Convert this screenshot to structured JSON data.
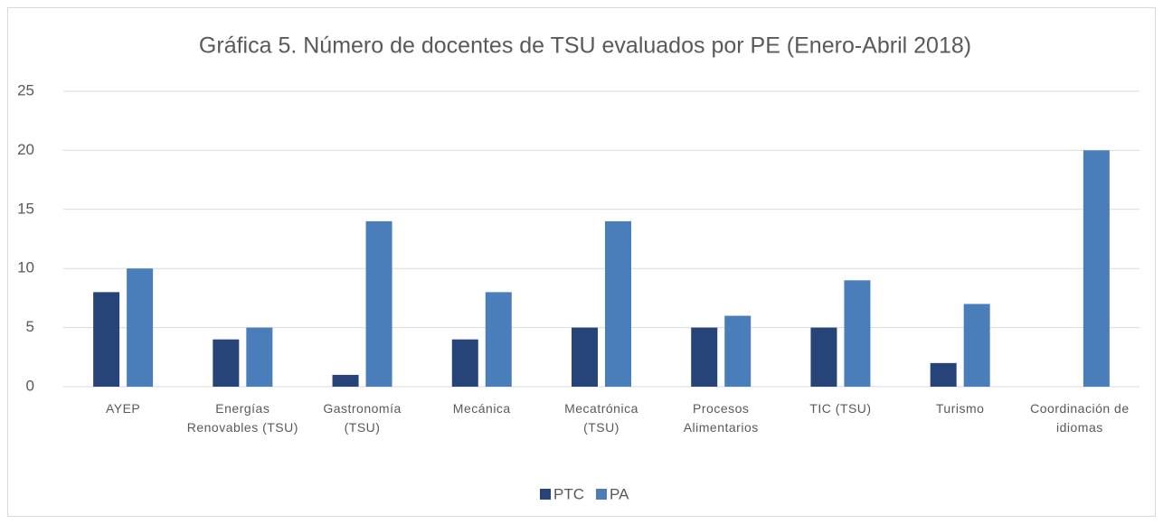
{
  "chart_data": {
    "type": "bar",
    "title": "Gráfica 5. Número de docentes de TSU  evaluados por PE (Enero-Abril 2018)",
    "categories": [
      "AYEP",
      "Energías Renovables (TSU)",
      "Gastronomía (TSU)",
      "Mecánica",
      "Mecatrónica (TSU)",
      "Procesos Alimentarios",
      "TIC (TSU)",
      "Turismo",
      "Coordinación de idiomas"
    ],
    "series": [
      {
        "name": "PTC",
        "color": "#264478",
        "values": [
          8,
          4,
          1,
          4,
          5,
          5,
          5,
          2,
          0
        ]
      },
      {
        "name": "PA",
        "color": "#4a7ebb",
        "values": [
          10,
          5,
          14,
          8,
          14,
          6,
          9,
          7,
          20
        ]
      }
    ],
    "ylim": [
      0,
      25
    ],
    "yticks": [
      0,
      5,
      10,
      15,
      20,
      25
    ],
    "grid": true,
    "legend": "bottom"
  }
}
